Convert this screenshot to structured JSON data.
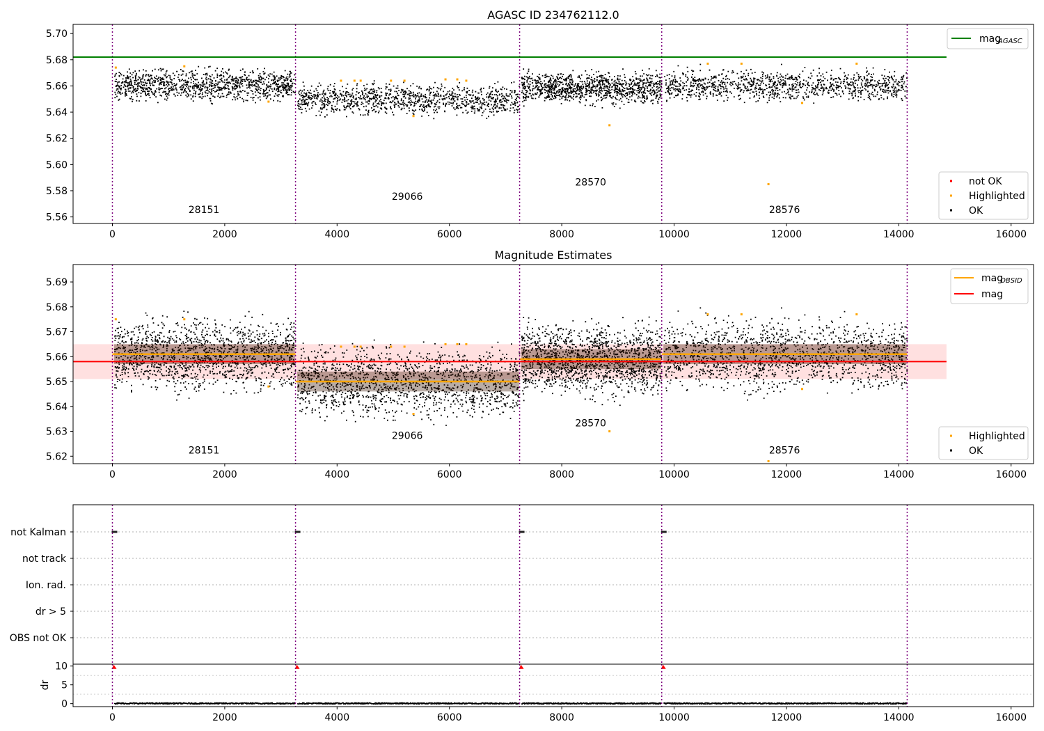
{
  "chart_data": [
    {
      "type": "scatter",
      "title": "AGASC ID 234762112.0",
      "xlim": [
        -700,
        16400
      ],
      "ylim": [
        5.555,
        5.707
      ],
      "x_ticks": [
        0,
        2000,
        4000,
        6000,
        8000,
        10000,
        12000,
        14000,
        16000
      ],
      "y_ticks": [
        5.56,
        5.58,
        5.6,
        5.62,
        5.64,
        5.66,
        5.68,
        5.7
      ],
      "y_tick_decimals": 2,
      "obsid_boundaries": [
        0,
        3260,
        7250,
        9780,
        14150
      ],
      "obsid_labels": [
        {
          "text": "28151",
          "x": 1630,
          "y": 5.563
        },
        {
          "text": "29066",
          "x": 5250,
          "y": 5.573
        },
        {
          "text": "28570",
          "x": 8515,
          "y": 5.584
        },
        {
          "text": "28576",
          "x": 11965,
          "y": 5.563
        }
      ],
      "segments_mean": [
        5.661,
        5.65,
        5.659,
        5.661
      ],
      "scatter_spread": 0.0055,
      "series": [
        {
          "name": "mag$_{AGASC}$",
          "kind": "hline",
          "y": 5.682,
          "x_range": [
            -700,
            14850
          ],
          "color": "#008000"
        }
      ],
      "highlighted": [
        [
          60,
          5.674
        ],
        [
          1280,
          5.675
        ],
        [
          2780,
          5.648
        ],
        [
          4070,
          5.664
        ],
        [
          4310,
          5.664
        ],
        [
          4420,
          5.664
        ],
        [
          4960,
          5.664
        ],
        [
          5200,
          5.664
        ],
        [
          5360,
          5.637
        ],
        [
          5930,
          5.665
        ],
        [
          6140,
          5.665
        ],
        [
          6300,
          5.664
        ],
        [
          8850,
          5.63
        ],
        [
          10600,
          5.677
        ],
        [
          11200,
          5.677
        ],
        [
          11680,
          5.585
        ],
        [
          12280,
          5.647
        ],
        [
          13250,
          5.677
        ]
      ],
      "legend_top": {
        "position": "upper right",
        "entries": [
          {
            "label_main": "mag",
            "label_sub": "AGASC",
            "color": "#008000"
          }
        ]
      },
      "legend_bottom": {
        "position": "lower right",
        "entries": [
          {
            "label": "not OK",
            "color": "#ff0000"
          },
          {
            "label": "Highlighted",
            "color": "#ffa500"
          },
          {
            "label": "OK",
            "color": "#000000"
          }
        ]
      }
    },
    {
      "type": "scatter",
      "title": "Magnitude Estimates",
      "xlim": [
        -700,
        16400
      ],
      "ylim": [
        5.617,
        5.697
      ],
      "x_ticks": [
        0,
        2000,
        4000,
        6000,
        8000,
        10000,
        12000,
        14000,
        16000
      ],
      "y_ticks": [
        5.62,
        5.63,
        5.64,
        5.65,
        5.66,
        5.67,
        5.68,
        5.69
      ],
      "y_tick_decimals": 2,
      "obsid_boundaries": [
        0,
        3260,
        7250,
        9780,
        14150
      ],
      "obsid_labels": [
        {
          "text": "28151",
          "x": 1630,
          "y": 5.621
        },
        {
          "text": "29066",
          "x": 5250,
          "y": 5.627
        },
        {
          "text": "28570",
          "x": 8515,
          "y": 5.632
        },
        {
          "text": "28576",
          "x": 11965,
          "y": 5.621
        }
      ],
      "segments_mean": [
        5.661,
        5.65,
        5.659,
        5.661
      ],
      "scatter_spread": 0.0065,
      "mag_line": {
        "name": "mag",
        "y": 5.658,
        "band": [
          5.651,
          5.665
        ],
        "x_range": [
          -700,
          14850
        ],
        "color": "#ff0000"
      },
      "series": [
        {
          "name": "mag$_{OBSID}$",
          "kind": "segments",
          "color": "#ffa500",
          "values": [
            {
              "x": [
                0,
                3260
              ],
              "y": 5.661
            },
            {
              "x": [
                3260,
                7250
              ],
              "y": 5.65
            },
            {
              "x": [
                7250,
                9780
              ],
              "y": 5.659
            },
            {
              "x": [
                9780,
                14150
              ],
              "y": 5.661
            }
          ]
        }
      ],
      "highlighted": [
        [
          60,
          5.675
        ],
        [
          1280,
          5.675
        ],
        [
          2780,
          5.648
        ],
        [
          4070,
          5.664
        ],
        [
          4310,
          5.664
        ],
        [
          4420,
          5.664
        ],
        [
          4960,
          5.664
        ],
        [
          5200,
          5.664
        ],
        [
          5360,
          5.637
        ],
        [
          5930,
          5.665
        ],
        [
          6140,
          5.665
        ],
        [
          6300,
          5.665
        ],
        [
          8850,
          5.63
        ],
        [
          10600,
          5.677
        ],
        [
          11200,
          5.677
        ],
        [
          11680,
          5.618
        ],
        [
          12280,
          5.647
        ],
        [
          13250,
          5.677
        ]
      ],
      "legend_top": {
        "position": "upper right",
        "entries": [
          {
            "label_main": "mag",
            "label_sub": "OBSID",
            "color": "#ffa500"
          },
          {
            "label_main": "mag",
            "label_sub": "",
            "color": "#ff0000"
          }
        ]
      },
      "legend_bottom": {
        "position": "lower right",
        "entries": [
          {
            "label": "Highlighted",
            "color": "#ffa500"
          },
          {
            "label": "OK",
            "color": "#000000"
          }
        ]
      }
    },
    {
      "type": "scatter",
      "title": "",
      "categories": [
        "not Kalman",
        "not track",
        "Ion. rad.",
        "dr > 5",
        "OBS not OK"
      ],
      "xlim": [
        -700,
        16400
      ],
      "obsid_boundaries": [
        0,
        3260,
        7250,
        9780,
        14150
      ],
      "flag_marks": [
        {
          "category": "not Kalman",
          "x": [
            0,
            3260,
            7250,
            9780
          ]
        }
      ]
    },
    {
      "type": "scatter",
      "title": "",
      "ylabel": "dr",
      "xlim": [
        -700,
        16400
      ],
      "ylim": [
        -0.8,
        10.5
      ],
      "x_ticks": [
        0,
        2000,
        4000,
        6000,
        8000,
        10000,
        12000,
        14000,
        16000
      ],
      "y_ticks": [
        0,
        5,
        10
      ],
      "obsid_boundaries": [
        0,
        3260,
        7250,
        9780,
        14150
      ],
      "dr_baseline": 0.2,
      "dr_high": {
        "y": 9.8,
        "x": [
          0,
          3260,
          7250,
          9780
        ],
        "color": "#ff0000"
      }
    }
  ],
  "colors": {
    "boundary": "#800080",
    "ok": "#000000",
    "highlighted": "#ffa500",
    "not_ok": "#ff0000",
    "agasc_line": "#008000",
    "mag_line": "#ff0000",
    "band": "#ffe0e0",
    "segment_cloud": "#3a1500"
  }
}
